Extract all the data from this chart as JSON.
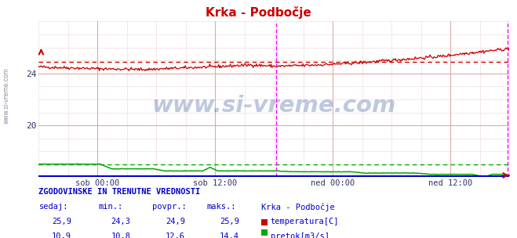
{
  "title": "Krka - Podbočje",
  "title_color": "#cc0000",
  "bg_color": "#ffffff",
  "plot_bg_color": "#ffffff",
  "grid_major_color": "#ddaaaa",
  "grid_minor_color": "#eedddd",
  "x_labels": [
    "sob 00:00",
    "sob 12:00",
    "ned 00:00",
    "ned 12:00"
  ],
  "x_tick_pos": [
    0.125,
    0.375,
    0.625,
    0.875
  ],
  "temp_color": "#cc0000",
  "flow_color": "#00aa00",
  "magenta_color": "#ff00ff",
  "blue_bottom_color": "#0000cc",
  "temp_avg": 24.9,
  "flow_avg": 12.6,
  "ymin": 16.0,
  "ymax": 28.0,
  "yticks": [
    20,
    24
  ],
  "watermark": "www.si-vreme.com",
  "watermark_color": "#1a3a8a",
  "watermark_alpha": 0.28,
  "table_header": "ZGODOVINSKE IN TRENUTNE VREDNOSTI",
  "table_cols": [
    "sedaj:",
    "min.:",
    "povpr.:",
    "maks.:",
    "Krka - Podbočje"
  ],
  "row1_vals": [
    "25,9",
    "24,3",
    "24,9",
    "25,9"
  ],
  "row2_vals": [
    "10,9",
    "10,8",
    "12,6",
    "14,4"
  ],
  "legend_temp": "temperatura[C]",
  "legend_flow": "pretok[m3/s]",
  "text_color": "#0000cc",
  "side_label": "www.si-vreme.com",
  "flow_ymap_min": 16.0,
  "flow_ymap_max": 17.8,
  "flow_data_min": 9.5,
  "flow_data_max": 15.0,
  "temp_yoffset_dotted": 24.9,
  "flow_dotted_raw": 12.6
}
